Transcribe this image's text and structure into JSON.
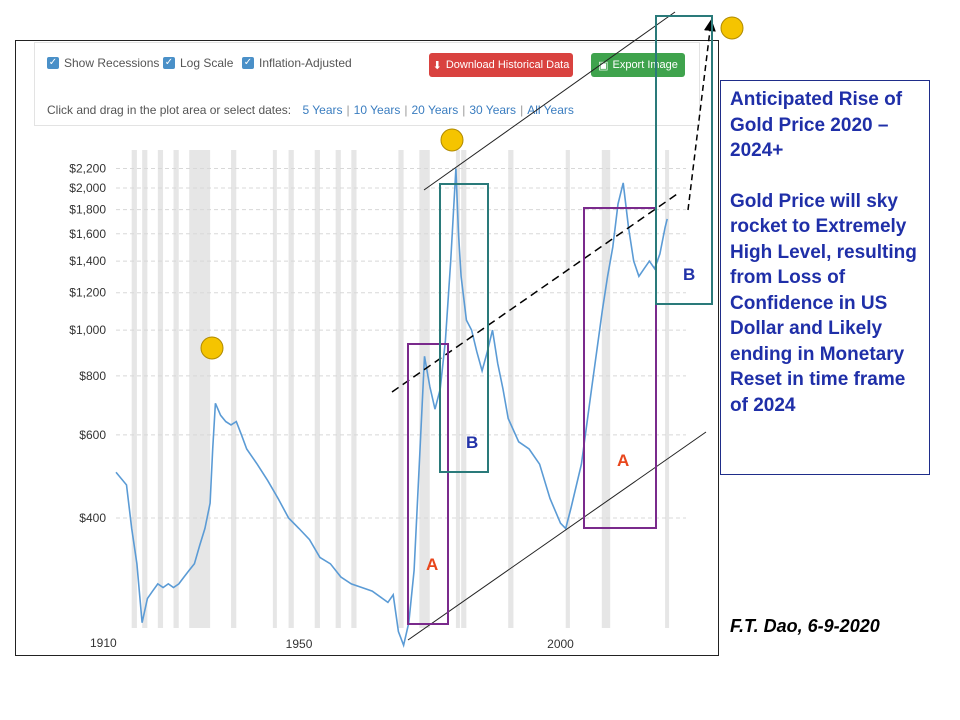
{
  "toolbar": {
    "show_recessions": "Show Recessions",
    "log_scale": "Log Scale",
    "inflation_adjusted": "Inflation-Adjusted",
    "download_label": "Download Historical Data",
    "export_label": "Export Image",
    "range_prompt": "Click and drag in the plot area or select dates:",
    "range_options": [
      "5 Years",
      "10 Years",
      "20 Years",
      "30 Years",
      "All Years"
    ]
  },
  "annotation": {
    "heading": "Anticipated Rise of Gold Price 2020 – 2024+",
    "body": "Gold Price will sky rocket to Extremely High Level, resulting from Loss of Confidence in US Dollar and Likely ending in Monetary Reset in time frame of 2024"
  },
  "credit": "F.T. Dao,  6-9-2020",
  "colors": {
    "series": "#5b9bd5",
    "recession": "#e6e6e6",
    "box_a": "#7a2a8c",
    "box_b": "#2a7a7a",
    "label_a": "#e8461c",
    "label_b": "#2232a8",
    "marker": "#f5c400"
  },
  "chart_data": {
    "type": "line",
    "log_scale": true,
    "y_ticks": [
      400,
      600,
      800,
      1000,
      1200,
      1400,
      1600,
      1800,
      2000,
      2200
    ],
    "y_tick_labels": [
      "$400",
      "$600",
      "$800",
      "$1,000",
      "$1,200",
      "$1,400",
      "$1,600",
      "$1,800",
      "$2,000",
      "$2,200"
    ],
    "x_tick_labels": [
      {
        "year": 1910,
        "label": "1910"
      },
      {
        "year": 1950,
        "label": "1950"
      },
      {
        "year": 2000,
        "label": "2000"
      }
    ],
    "xlim": [
      1915,
      2024
    ],
    "series": [
      {
        "x": [
          1915,
          1917,
          1918,
          1919,
          1920,
          1921,
          1922,
          1923,
          1924,
          1925,
          1926,
          1927,
          1928,
          1929,
          1930,
          1931,
          1932,
          1933,
          1933.5,
          1934,
          1935,
          1936,
          1937,
          1938,
          1939,
          1940,
          1942,
          1944,
          1946,
          1948,
          1950,
          1952,
          1954,
          1956,
          1958,
          1960,
          1962,
          1964,
          1966,
          1967,
          1968,
          1969,
          1970,
          1971,
          1972,
          1973,
          1974,
          1975,
          1976,
          1977,
          1978,
          1979,
          1980,
          1980.5,
          1981,
          1982,
          1983,
          1984,
          1985,
          1986,
          1987,
          1988,
          1989,
          1990,
          1992,
          1994,
          1996,
          1998,
          2000,
          2001,
          2002,
          2004,
          2006,
          2008,
          2009,
          2010,
          2011,
          2012,
          2013,
          2014,
          2015,
          2016,
          2017,
          2018,
          2019,
          2020,
          2020.4
        ],
        "values": [
          500,
          470,
          380,
          320,
          240,
          270,
          280,
          290,
          285,
          290,
          285,
          290,
          300,
          310,
          320,
          350,
          380,
          430,
          560,
          700,
          660,
          640,
          630,
          640,
          600,
          560,
          520,
          480,
          440,
          400,
          380,
          360,
          330,
          320,
          300,
          290,
          285,
          280,
          270,
          265,
          275,
          230,
          215,
          240,
          310,
          520,
          880,
          760,
          680,
          750,
          950,
          1400,
          2200,
          1600,
          1300,
          1050,
          1000,
          900,
          820,
          900,
          1000,
          850,
          750,
          650,
          580,
          560,
          520,
          440,
          390,
          380,
          420,
          520,
          760,
          1100,
          1300,
          1500,
          1850,
          2050,
          1650,
          1400,
          1300,
          1350,
          1400,
          1350,
          1450,
          1650,
          1720
        ]
      }
    ],
    "recessions": [
      [
        1918,
        1919
      ],
      [
        1920,
        1921
      ],
      [
        1923,
        1924
      ],
      [
        1926,
        1927
      ],
      [
        1929,
        1933
      ],
      [
        1937,
        1938
      ],
      [
        1945,
        1945.5
      ],
      [
        1948,
        1949
      ],
      [
        1953,
        1954
      ],
      [
        1957,
        1958
      ],
      [
        1960,
        1961
      ],
      [
        1969,
        1970
      ],
      [
        1973,
        1975
      ],
      [
        1980,
        1980.5
      ],
      [
        1981,
        1982
      ],
      [
        1990,
        1991
      ],
      [
        2001,
        2001.8
      ],
      [
        2007.9,
        2009.5
      ],
      [
        2020,
        2020.4
      ]
    ]
  }
}
